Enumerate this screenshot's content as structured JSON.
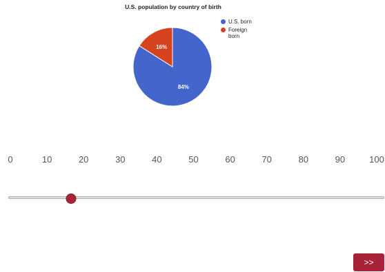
{
  "chart_data": {
    "type": "pie",
    "title": "U.S. population by country of birth",
    "slices": [
      {
        "name": "U.S. born",
        "value": 84,
        "label": "84%",
        "color": "#4466cc"
      },
      {
        "name": "Foreign born",
        "value": 16,
        "label": "16%",
        "color": "#d6441f"
      }
    ],
    "legend_position": "right"
  },
  "slider": {
    "min": 0,
    "max": 100,
    "value": 16.5,
    "tick_labels": [
      "0",
      "10",
      "20",
      "30",
      "40",
      "50",
      "60",
      "70",
      "80",
      "90",
      "100"
    ],
    "accent_color": "#a8233a"
  },
  "next_button": {
    "label": ">>"
  }
}
